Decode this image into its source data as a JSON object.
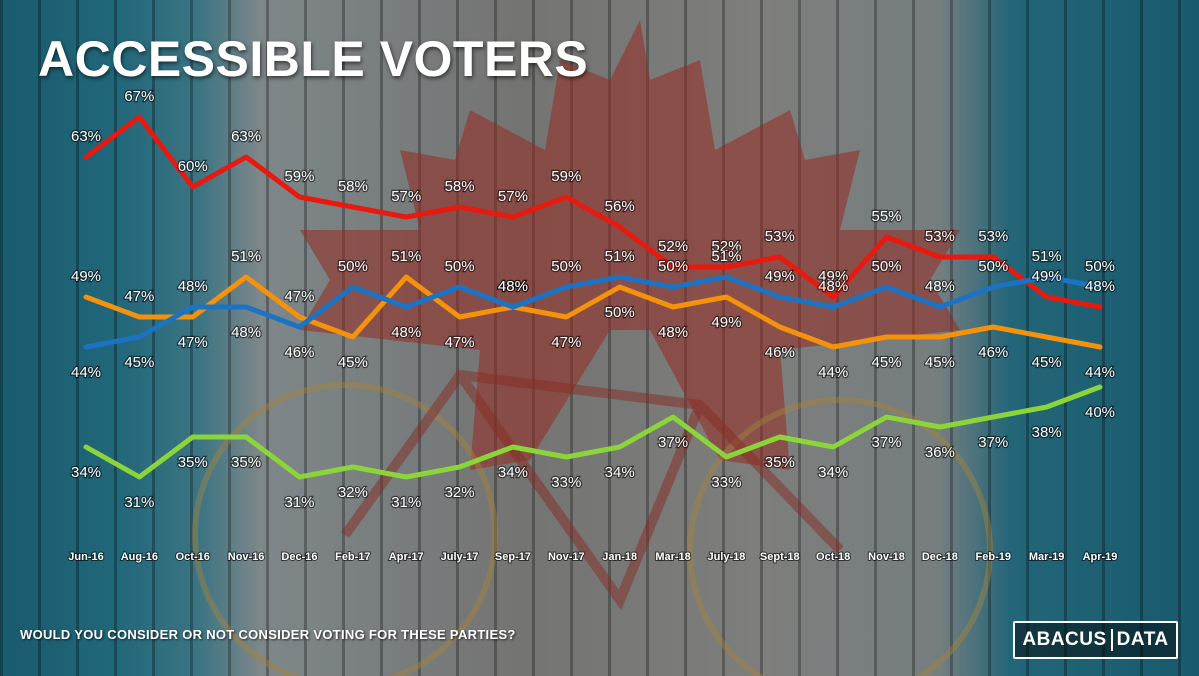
{
  "title": "ACCESSIBLE VOTERS",
  "footnote": "WOULD YOU CONSIDER OR NOT CONSIDER VOTING FOR THESE PARTIES?",
  "logo": {
    "left": "ABACUS",
    "right": "DATA"
  },
  "chart_data": {
    "type": "line",
    "title": "ACCESSIBLE VOTERS",
    "categories": [
      "Jun-16",
      "Aug-16",
      "Oct-16",
      "Nov-16",
      "Dec-16",
      "Feb-17",
      "Apr-17",
      "July-17",
      "Sep-17",
      "Nov-17",
      "Jan-18",
      "Mar-18",
      "July-18",
      "Sept-18",
      "Oct-18",
      "Nov-18",
      "Dec-18",
      "Feb-19",
      "Mar-19",
      "Apr-19"
    ],
    "series": [
      {
        "color": "#e8190f",
        "values": [
          63,
          67,
          60,
          63,
          59,
          58,
          57,
          58,
          57,
          59,
          56,
          52,
          52,
          53,
          49,
          55,
          53,
          53,
          49,
          48
        ]
      },
      {
        "color": "#f5920b",
        "values": [
          49,
          47,
          47,
          51,
          47,
          45,
          51,
          47,
          48,
          47,
          50,
          48,
          49,
          46,
          44,
          45,
          45,
          46,
          45,
          44
        ]
      },
      {
        "color": "#1c73c4",
        "values": [
          44,
          45,
          48,
          48,
          46,
          50,
          48,
          50,
          48,
          50,
          51,
          50,
          51,
          49,
          48,
          50,
          48,
          50,
          51,
          50
        ]
      },
      {
        "color": "#8bd43a",
        "values": [
          34,
          31,
          35,
          35,
          31,
          32,
          31,
          32,
          34,
          33,
          34,
          37,
          33,
          35,
          34,
          37,
          36,
          37,
          38,
          40
        ]
      }
    ],
    "ylim": [
      25,
      70
    ],
    "grid": false,
    "legend": "none"
  }
}
